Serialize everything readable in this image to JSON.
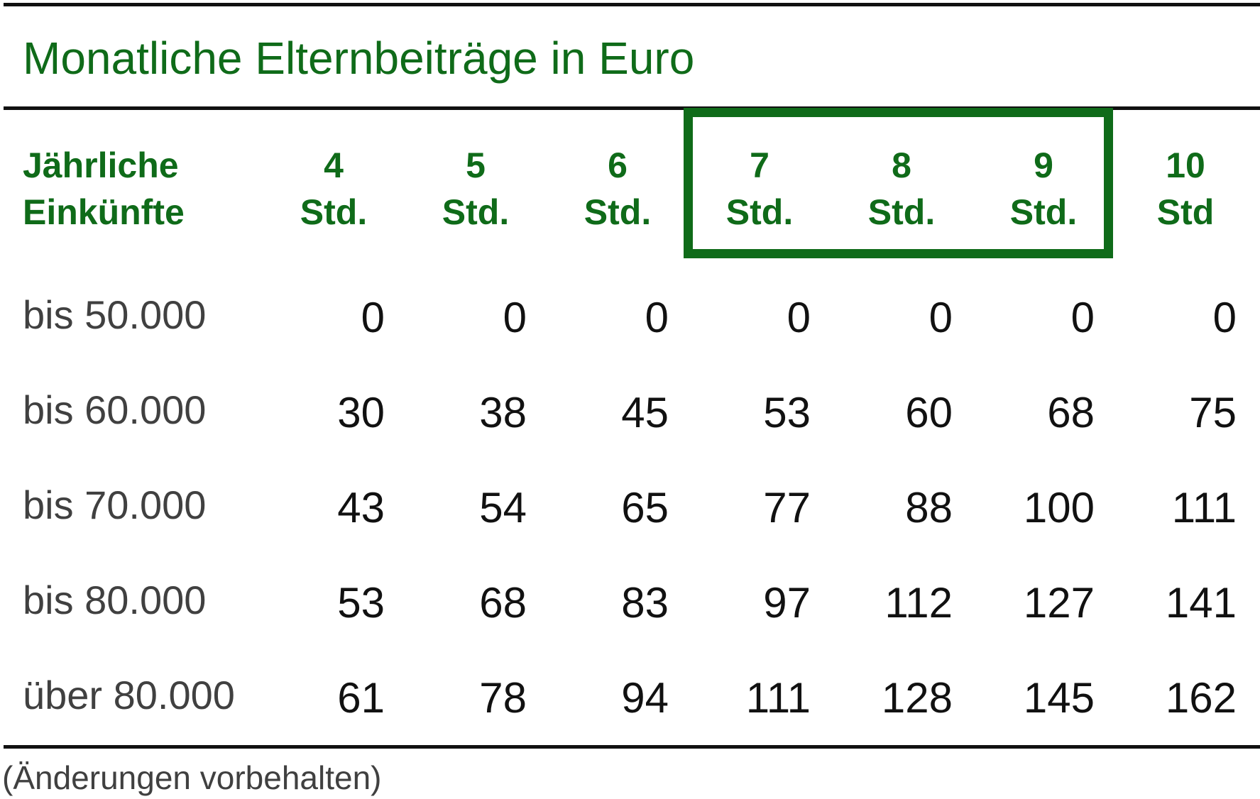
{
  "title": "Monatliche Elternbeiträge in Euro",
  "header": {
    "row_label_line1": "Jährliche",
    "row_label_line2": "Einkünfte",
    "columns": [
      {
        "number": "4",
        "unit": "Std."
      },
      {
        "number": "5",
        "unit": "Std."
      },
      {
        "number": "6",
        "unit": "Std."
      },
      {
        "number": "7",
        "unit": "Std."
      },
      {
        "number": "8",
        "unit": "Std."
      },
      {
        "number": "9",
        "unit": "Std."
      },
      {
        "number": "10",
        "unit": "Std"
      }
    ]
  },
  "highlighted_columns": [
    "7 Std.",
    "8 Std.",
    "9 Std."
  ],
  "rows": [
    {
      "label": "bis 50.000",
      "values": [
        "0",
        "0",
        "0",
        "0",
        "0",
        "0",
        "0"
      ]
    },
    {
      "label": "bis 60.000",
      "values": [
        "30",
        "38",
        "45",
        "53",
        "60",
        "68",
        "75"
      ]
    },
    {
      "label": "bis 70.000",
      "values": [
        "43",
        "54",
        "65",
        "77",
        "88",
        "100",
        "111"
      ]
    },
    {
      "label": "bis 80.000",
      "values": [
        "53",
        "68",
        "83",
        "97",
        "112",
        "127",
        "141"
      ]
    },
    {
      "label": "über 80.000",
      "values": [
        "61",
        "78",
        "94",
        "111",
        "128",
        "145",
        "162"
      ]
    }
  ],
  "footnote": "(Änderungen vorbehalten)",
  "colors": {
    "accent_green": "#0f6b19",
    "text_dark": "#111111",
    "text_gray": "#404040",
    "rule": "#111111"
  }
}
